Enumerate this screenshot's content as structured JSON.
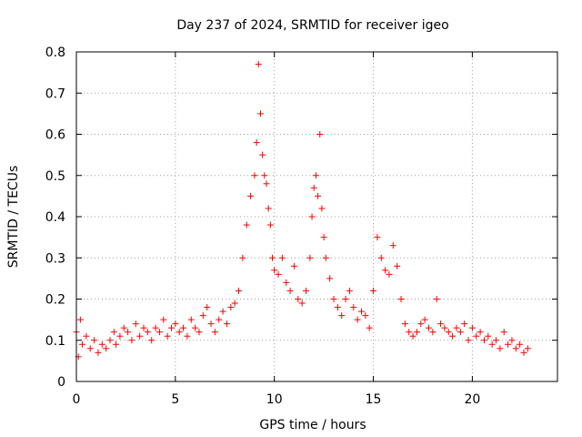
{
  "chart_data": {
    "type": "scatter",
    "title": "Day 237 of 2024, SRMTID for receiver igeo",
    "xlabel": "GPS time / hours",
    "ylabel": "SRMTID / TECUs",
    "xlim": [
      0,
      24.3
    ],
    "ylim": [
      0,
      0.8
    ],
    "xticks": [
      0,
      5,
      10,
      15,
      20
    ],
    "yticks": [
      0,
      0.1,
      0.2,
      0.3,
      0.4,
      0.5,
      0.6,
      0.7,
      0.8
    ],
    "grid": true,
    "marker": "+",
    "series": [
      {
        "name": "igeo",
        "color": "#ff0000",
        "x": [
          0.0,
          0.1,
          0.2,
          0.3,
          0.5,
          0.7,
          0.9,
          1.1,
          1.3,
          1.5,
          1.7,
          1.9,
          2.0,
          2.2,
          2.4,
          2.6,
          2.8,
          3.0,
          3.2,
          3.4,
          3.6,
          3.8,
          4.0,
          4.2,
          4.4,
          4.6,
          4.8,
          5.0,
          5.2,
          5.4,
          5.6,
          5.8,
          6.0,
          6.2,
          6.4,
          6.6,
          6.8,
          7.0,
          7.2,
          7.4,
          7.6,
          7.8,
          8.0,
          8.2,
          8.4,
          8.6,
          8.8,
          9.0,
          9.1,
          9.2,
          9.3,
          9.4,
          9.5,
          9.6,
          9.7,
          9.8,
          9.9,
          10.0,
          10.2,
          10.4,
          10.6,
          10.8,
          11.0,
          11.2,
          11.4,
          11.6,
          11.8,
          11.9,
          12.0,
          12.1,
          12.2,
          12.3,
          12.4,
          12.5,
          12.6,
          12.8,
          13.0,
          13.2,
          13.4,
          13.6,
          13.8,
          14.0,
          14.2,
          14.4,
          14.6,
          14.8,
          15.0,
          15.2,
          15.4,
          15.6,
          15.8,
          16.0,
          16.2,
          16.4,
          16.6,
          16.8,
          17.0,
          17.2,
          17.4,
          17.6,
          17.8,
          18.0,
          18.2,
          18.4,
          18.6,
          18.8,
          19.0,
          19.2,
          19.4,
          19.6,
          19.8,
          20.0,
          20.2,
          20.4,
          20.6,
          20.8,
          21.0,
          21.2,
          21.4,
          21.6,
          21.8,
          22.0,
          22.2,
          22.4,
          22.6,
          22.8
        ],
        "y": [
          0.12,
          0.06,
          0.15,
          0.09,
          0.11,
          0.08,
          0.1,
          0.07,
          0.09,
          0.08,
          0.1,
          0.12,
          0.09,
          0.11,
          0.13,
          0.12,
          0.1,
          0.14,
          0.11,
          0.13,
          0.12,
          0.1,
          0.13,
          0.12,
          0.15,
          0.11,
          0.13,
          0.14,
          0.12,
          0.13,
          0.11,
          0.15,
          0.13,
          0.12,
          0.16,
          0.18,
          0.14,
          0.12,
          0.15,
          0.17,
          0.14,
          0.18,
          0.19,
          0.22,
          0.3,
          0.38,
          0.45,
          0.5,
          0.58,
          0.77,
          0.65,
          0.55,
          0.5,
          0.48,
          0.42,
          0.38,
          0.3,
          0.27,
          0.26,
          0.3,
          0.24,
          0.22,
          0.28,
          0.2,
          0.19,
          0.22,
          0.3,
          0.4,
          0.47,
          0.5,
          0.45,
          0.6,
          0.42,
          0.35,
          0.3,
          0.25,
          0.2,
          0.18,
          0.16,
          0.2,
          0.22,
          0.18,
          0.15,
          0.17,
          0.16,
          0.13,
          0.22,
          0.35,
          0.3,
          0.27,
          0.26,
          0.33,
          0.28,
          0.2,
          0.14,
          0.12,
          0.11,
          0.12,
          0.14,
          0.15,
          0.13,
          0.12,
          0.2,
          0.14,
          0.13,
          0.12,
          0.11,
          0.13,
          0.12,
          0.14,
          0.1,
          0.13,
          0.11,
          0.12,
          0.1,
          0.11,
          0.09,
          0.1,
          0.08,
          0.12,
          0.09,
          0.1,
          0.08,
          0.09,
          0.07,
          0.08
        ]
      }
    ]
  }
}
